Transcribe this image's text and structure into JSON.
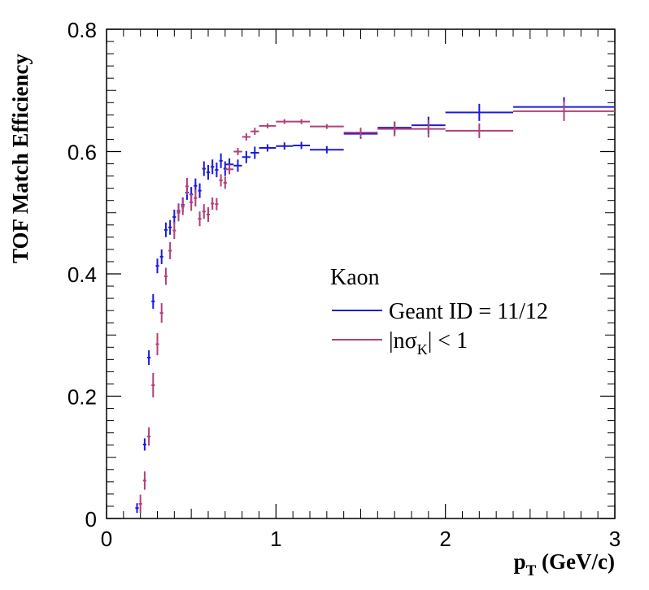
{
  "chart_data": {
    "type": "scatter",
    "xlabel_main": "p",
    "xlabel_sub": "T",
    "xlabel_unit": " (GeV/c)",
    "ylabel": "TOF Match Efficiency",
    "xlim": [
      0,
      3
    ],
    "ylim": [
      0,
      0.8
    ],
    "x_ticks": [
      "0",
      "1",
      "2",
      "3"
    ],
    "y_ticks": [
      "0",
      "0.2",
      "0.4",
      "0.6",
      "0.8"
    ],
    "legend": {
      "header": "Kaon",
      "placement": "right-center"
    },
    "series": [
      {
        "name": "Geant ID = 11/12",
        "color": "#1a1adf",
        "points": [
          {
            "x": 0.18,
            "y": 0.017,
            "xe": 0.01,
            "ye": 0.008
          },
          {
            "x": 0.225,
            "y": 0.121,
            "xe": 0.01,
            "ye": 0.01
          },
          {
            "x": 0.25,
            "y": 0.263,
            "xe": 0.01,
            "ye": 0.012
          },
          {
            "x": 0.275,
            "y": 0.355,
            "xe": 0.01,
            "ye": 0.012
          },
          {
            "x": 0.3,
            "y": 0.413,
            "xe": 0.01,
            "ye": 0.012
          },
          {
            "x": 0.325,
            "y": 0.428,
            "xe": 0.01,
            "ye": 0.012
          },
          {
            "x": 0.35,
            "y": 0.472,
            "xe": 0.01,
            "ye": 0.012
          },
          {
            "x": 0.375,
            "y": 0.476,
            "xe": 0.01,
            "ye": 0.012
          },
          {
            "x": 0.4,
            "y": 0.493,
            "xe": 0.01,
            "ye": 0.012
          },
          {
            "x": 0.425,
            "y": 0.503,
            "xe": 0.01,
            "ye": 0.012
          },
          {
            "x": 0.45,
            "y": 0.513,
            "xe": 0.01,
            "ye": 0.012
          },
          {
            "x": 0.475,
            "y": 0.533,
            "xe": 0.01,
            "ye": 0.012
          },
          {
            "x": 0.5,
            "y": 0.53,
            "xe": 0.01,
            "ye": 0.012
          },
          {
            "x": 0.525,
            "y": 0.544,
            "xe": 0.01,
            "ye": 0.012
          },
          {
            "x": 0.55,
            "y": 0.536,
            "xe": 0.01,
            "ye": 0.012
          },
          {
            "x": 0.575,
            "y": 0.572,
            "xe": 0.01,
            "ye": 0.012
          },
          {
            "x": 0.6,
            "y": 0.566,
            "xe": 0.01,
            "ye": 0.012
          },
          {
            "x": 0.625,
            "y": 0.575,
            "xe": 0.01,
            "ye": 0.012
          },
          {
            "x": 0.65,
            "y": 0.57,
            "xe": 0.01,
            "ye": 0.012
          },
          {
            "x": 0.675,
            "y": 0.585,
            "xe": 0.01,
            "ye": 0.012
          },
          {
            "x": 0.7,
            "y": 0.572,
            "xe": 0.01,
            "ye": 0.012
          },
          {
            "x": 0.725,
            "y": 0.579,
            "xe": 0.025,
            "ye": 0.01
          },
          {
            "x": 0.775,
            "y": 0.577,
            "xe": 0.025,
            "ye": 0.01
          },
          {
            "x": 0.825,
            "y": 0.591,
            "xe": 0.025,
            "ye": 0.01
          },
          {
            "x": 0.875,
            "y": 0.598,
            "xe": 0.025,
            "ye": 0.01
          },
          {
            "x": 0.95,
            "y": 0.606,
            "xe": 0.05,
            "ye": 0.006
          },
          {
            "x": 1.05,
            "y": 0.609,
            "xe": 0.05,
            "ye": 0.006
          },
          {
            "x": 1.15,
            "y": 0.61,
            "xe": 0.05,
            "ye": 0.006
          },
          {
            "x": 1.3,
            "y": 0.603,
            "xe": 0.1,
            "ye": 0.006
          },
          {
            "x": 1.5,
            "y": 0.629,
            "xe": 0.1,
            "ye": 0.008
          },
          {
            "x": 1.7,
            "y": 0.639,
            "xe": 0.1,
            "ye": 0.01
          },
          {
            "x": 1.9,
            "y": 0.643,
            "xe": 0.1,
            "ye": 0.014
          },
          {
            "x": 2.2,
            "y": 0.664,
            "xe": 0.2,
            "ye": 0.014
          },
          {
            "x": 2.7,
            "y": 0.673,
            "xe": 0.3,
            "ye": 0.016
          }
        ]
      },
      {
        "name": "|nσK| < 1",
        "name_parts": {
          "before": "|nσ",
          "sub": "K",
          "after": "| < 1"
        },
        "color": "#b0407a",
        "points": [
          {
            "x": 0.2,
            "y": 0.024,
            "xe": 0.01,
            "ye": 0.015
          },
          {
            "x": 0.225,
            "y": 0.062,
            "xe": 0.01,
            "ye": 0.015
          },
          {
            "x": 0.25,
            "y": 0.134,
            "xe": 0.01,
            "ye": 0.015
          },
          {
            "x": 0.275,
            "y": 0.218,
            "xe": 0.01,
            "ye": 0.02
          },
          {
            "x": 0.3,
            "y": 0.285,
            "xe": 0.01,
            "ye": 0.018
          },
          {
            "x": 0.325,
            "y": 0.336,
            "xe": 0.01,
            "ye": 0.016
          },
          {
            "x": 0.35,
            "y": 0.396,
            "xe": 0.01,
            "ye": 0.014
          },
          {
            "x": 0.375,
            "y": 0.438,
            "xe": 0.01,
            "ye": 0.014
          },
          {
            "x": 0.4,
            "y": 0.471,
            "xe": 0.01,
            "ye": 0.014
          },
          {
            "x": 0.425,
            "y": 0.5,
            "xe": 0.01,
            "ye": 0.014
          },
          {
            "x": 0.45,
            "y": 0.51,
            "xe": 0.01,
            "ye": 0.014
          },
          {
            "x": 0.475,
            "y": 0.543,
            "xe": 0.01,
            "ye": 0.014
          },
          {
            "x": 0.5,
            "y": 0.517,
            "xe": 0.01,
            "ye": 0.014
          },
          {
            "x": 0.525,
            "y": 0.524,
            "xe": 0.01,
            "ye": 0.014
          },
          {
            "x": 0.55,
            "y": 0.49,
            "xe": 0.01,
            "ye": 0.012
          },
          {
            "x": 0.575,
            "y": 0.502,
            "xe": 0.01,
            "ye": 0.012
          },
          {
            "x": 0.6,
            "y": 0.497,
            "xe": 0.01,
            "ye": 0.012
          },
          {
            "x": 0.625,
            "y": 0.515,
            "xe": 0.01,
            "ye": 0.01
          },
          {
            "x": 0.65,
            "y": 0.514,
            "xe": 0.01,
            "ye": 0.01
          },
          {
            "x": 0.675,
            "y": 0.553,
            "xe": 0.01,
            "ye": 0.01
          },
          {
            "x": 0.7,
            "y": 0.549,
            "xe": 0.01,
            "ye": 0.01
          },
          {
            "x": 0.725,
            "y": 0.571,
            "xe": 0.025,
            "ye": 0.008
          },
          {
            "x": 0.775,
            "y": 0.6,
            "xe": 0.025,
            "ye": 0.006
          },
          {
            "x": 0.825,
            "y": 0.624,
            "xe": 0.025,
            "ye": 0.006
          },
          {
            "x": 0.875,
            "y": 0.633,
            "xe": 0.025,
            "ye": 0.006
          },
          {
            "x": 0.95,
            "y": 0.642,
            "xe": 0.05,
            "ye": 0.004
          },
          {
            "x": 1.05,
            "y": 0.649,
            "xe": 0.05,
            "ye": 0.004
          },
          {
            "x": 1.15,
            "y": 0.649,
            "xe": 0.05,
            "ye": 0.004
          },
          {
            "x": 1.3,
            "y": 0.641,
            "xe": 0.1,
            "ye": 0.004
          },
          {
            "x": 1.5,
            "y": 0.631,
            "xe": 0.1,
            "ye": 0.008
          },
          {
            "x": 1.7,
            "y": 0.637,
            "xe": 0.1,
            "ye": 0.012
          },
          {
            "x": 1.9,
            "y": 0.637,
            "xe": 0.1,
            "ye": 0.014
          },
          {
            "x": 2.2,
            "y": 0.634,
            "xe": 0.2,
            "ye": 0.012
          },
          {
            "x": 2.7,
            "y": 0.666,
            "xe": 0.3,
            "ye": 0.016
          }
        ]
      }
    ]
  }
}
